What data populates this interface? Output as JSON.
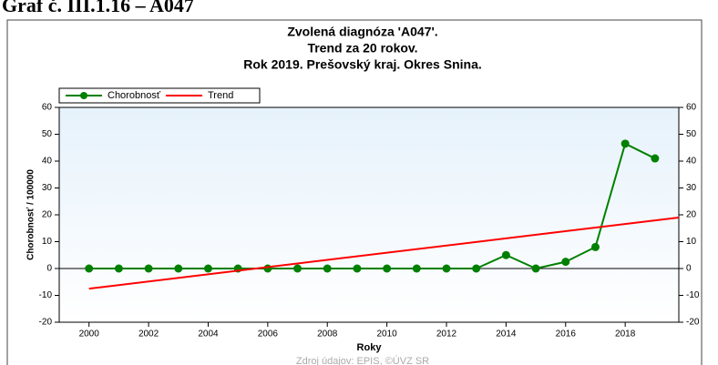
{
  "header": "Graf č. III.1.16 – A047",
  "chart_data": {
    "type": "line",
    "title": [
      "Zvolená diagnóza 'A047'.",
      "Trend za 20 rokov.",
      "Rok 2019. Prešovský kraj. Okres Snina."
    ],
    "x_label": "Roky",
    "y_label": "Chorobnosť / 100000",
    "x": [
      2000,
      2001,
      2002,
      2003,
      2004,
      2005,
      2006,
      2007,
      2008,
      2009,
      2010,
      2011,
      2012,
      2013,
      2014,
      2015,
      2016,
      2017,
      2018,
      2019
    ],
    "series": [
      {
        "name": "Chorobnosť",
        "color": "#008000",
        "values": [
          0,
          0,
          0,
          0,
          0,
          0,
          0,
          0,
          0,
          0,
          0,
          0,
          0,
          0,
          5,
          0,
          2.5,
          8,
          46.5,
          41
        ]
      },
      {
        "name": "Trend",
        "color": "#ff0000",
        "x": [
          2000,
          2019.8
        ],
        "values": [
          -7.5,
          19
        ]
      }
    ],
    "xlim": [
      1999,
      2019.8
    ],
    "xticks": [
      2000,
      2002,
      2004,
      2006,
      2008,
      2010,
      2012,
      2014,
      2016,
      2018
    ],
    "ylim": [
      -20,
      60
    ],
    "yticks": [
      -20,
      -10,
      0,
      10,
      20,
      30,
      40,
      50,
      60
    ],
    "source": "Zdroj údajov: EPIS, ©ÚVZ SR"
  }
}
